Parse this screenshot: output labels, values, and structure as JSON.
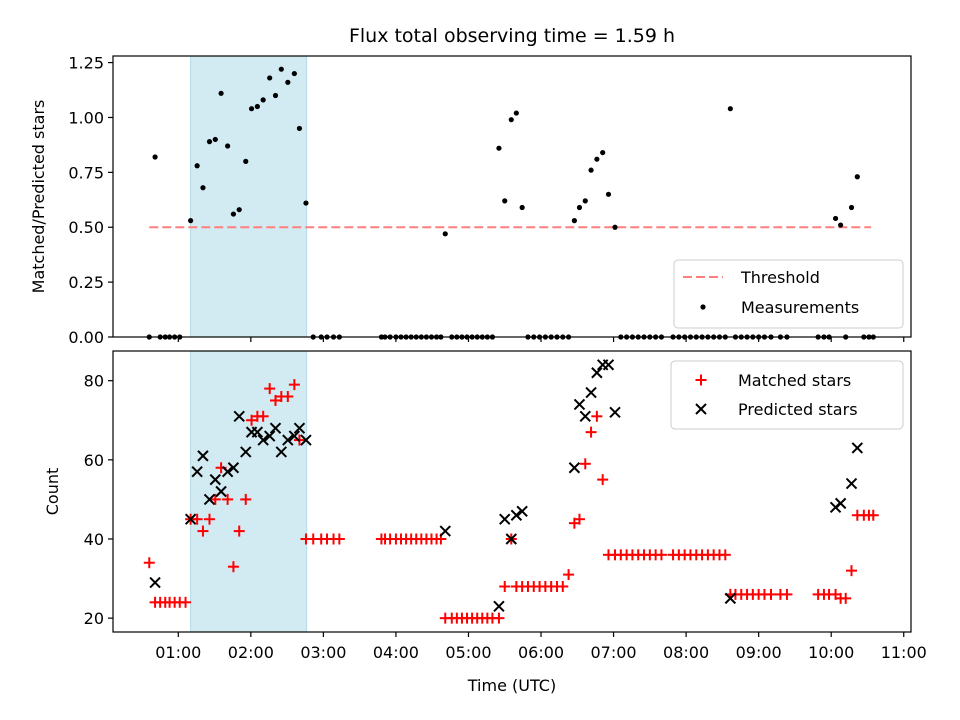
{
  "chart_data": {
    "title": "Flux total observing time = 1.59 h",
    "xlabel": "Time (UTC)",
    "x_ticks": [
      "01:00",
      "02:00",
      "03:00",
      "04:00",
      "05:00",
      "06:00",
      "07:00",
      "08:00",
      "09:00",
      "10:00",
      "11:00"
    ],
    "x_range_hours": [
      0.1,
      11.1
    ],
    "highlight_span_hours": [
      1.17,
      2.77
    ],
    "colors": {
      "threshold": "#ff7f7f",
      "measurement": "#000000",
      "matched": "#ff0000",
      "predicted": "#000000",
      "span": "#add8e6"
    },
    "panels": [
      {
        "type": "scatter",
        "ylabel": "Matched/Predicted stars",
        "ylim": [
          0,
          1.28
        ],
        "y_ticks": [
          "0.00",
          "0.25",
          "0.50",
          "0.75",
          "1.00",
          "1.25"
        ],
        "legend_position": "bottom-right",
        "threshold": {
          "name": "Threshold",
          "value": 0.5,
          "x_range": [
            0.6,
            10.55
          ]
        },
        "measurements": {
          "name": "Measurements",
          "x": [
            0.6,
            0.68,
            0.75,
            0.82,
            0.88,
            0.95,
            1.02,
            1.17,
            1.26,
            1.34,
            1.43,
            1.51,
            1.59,
            1.68,
            1.76,
            1.84,
            1.93,
            2.01,
            2.09,
            2.17,
            2.26,
            2.34,
            2.42,
            2.51,
            2.6,
            2.67,
            2.76,
            2.86,
            2.97,
            3.05,
            3.14,
            3.22,
            3.8,
            3.85,
            3.92,
            4.0,
            4.07,
            4.14,
            4.21,
            4.28,
            4.35,
            4.42,
            4.49,
            4.56,
            4.62,
            4.68,
            4.77,
            4.84,
            4.91,
            4.98,
            5.05,
            5.12,
            5.19,
            5.26,
            5.33,
            5.42,
            5.5,
            5.59,
            5.66,
            5.74,
            5.82,
            5.9,
            5.98,
            6.06,
            6.14,
            6.22,
            6.3,
            6.38,
            6.46,
            6.53,
            6.61,
            6.69,
            6.77,
            6.85,
            6.93,
            7.02,
            7.1,
            7.18,
            7.26,
            7.34,
            7.42,
            7.5,
            7.58,
            7.66,
            7.82,
            7.9,
            7.98,
            8.06,
            8.14,
            8.22,
            8.3,
            8.38,
            8.46,
            8.54,
            8.61,
            8.68,
            8.76,
            8.84,
            8.92,
            9.0,
            9.08,
            9.17,
            9.3,
            9.39,
            9.82,
            9.9,
            9.97,
            10.06,
            10.13,
            10.2,
            10.28,
            10.36,
            10.45,
            10.52,
            10.58
          ],
          "y": [
            0.0,
            0.82,
            0.0,
            0.0,
            0.0,
            0.0,
            0.0,
            0.53,
            0.78,
            0.68,
            0.89,
            0.9,
            1.11,
            0.87,
            0.56,
            0.58,
            0.8,
            1.04,
            1.05,
            1.08,
            1.18,
            1.1,
            1.22,
            1.16,
            1.2,
            0.95,
            0.61,
            0.0,
            0.0,
            0.0,
            0.0,
            0.0,
            0.0,
            0.0,
            0.0,
            0.0,
            0.0,
            0.0,
            0.0,
            0.0,
            0.0,
            0.0,
            0.0,
            0.0,
            0.0,
            0.47,
            0.0,
            0.0,
            0.0,
            0.0,
            0.0,
            0.0,
            0.0,
            0.0,
            0.0,
            0.86,
            0.62,
            0.99,
            1.02,
            0.59,
            0.0,
            0.0,
            0.0,
            0.0,
            0.0,
            0.0,
            0.0,
            0.0,
            0.53,
            0.59,
            0.62,
            0.76,
            0.81,
            0.84,
            0.65,
            0.5,
            0.0,
            0.0,
            0.0,
            0.0,
            0.0,
            0.0,
            0.0,
            0.0,
            0.0,
            0.0,
            0.0,
            0.0,
            0.0,
            0.0,
            0.0,
            0.0,
            0.0,
            0.0,
            1.04,
            0.0,
            0.0,
            0.0,
            0.0,
            0.0,
            0.0,
            0.0,
            0.0,
            0.0,
            0.0,
            0.0,
            0.0,
            0.54,
            0.51,
            0.0,
            0.59,
            0.73,
            0.0,
            0.0,
            0.0
          ]
        },
        "legend": [
          "Threshold",
          "Measurements"
        ]
      },
      {
        "type": "scatter",
        "ylabel": "Count",
        "ylim": [
          16.5,
          87.5
        ],
        "y_ticks": [
          "20",
          "40",
          "60",
          "80"
        ],
        "legend_position": "top-right",
        "matched": {
          "name": "Matched stars",
          "x": [
            0.6,
            0.68,
            0.75,
            0.82,
            0.88,
            0.95,
            1.02,
            1.1,
            1.17,
            1.26,
            1.34,
            1.43,
            1.51,
            1.59,
            1.68,
            1.76,
            1.84,
            1.93,
            2.01,
            2.09,
            2.17,
            2.26,
            2.34,
            2.42,
            2.51,
            2.6,
            2.67,
            2.76,
            2.86,
            2.97,
            3.05,
            3.14,
            3.22,
            3.8,
            3.85,
            3.92,
            4.0,
            4.07,
            4.14,
            4.21,
            4.28,
            4.35,
            4.42,
            4.49,
            4.56,
            4.62,
            4.68,
            4.77,
            4.84,
            4.91,
            4.98,
            5.05,
            5.12,
            5.19,
            5.26,
            5.33,
            5.42,
            5.5,
            5.59,
            5.66,
            5.74,
            5.82,
            5.9,
            5.98,
            6.06,
            6.14,
            6.22,
            6.3,
            6.38,
            6.46,
            6.53,
            6.61,
            6.69,
            6.77,
            6.85,
            6.93,
            7.02,
            7.1,
            7.18,
            7.26,
            7.34,
            7.42,
            7.5,
            7.58,
            7.66,
            7.82,
            7.9,
            7.98,
            8.06,
            8.14,
            8.22,
            8.3,
            8.38,
            8.46,
            8.54,
            8.61,
            8.68,
            8.76,
            8.84,
            8.92,
            9.0,
            9.08,
            9.17,
            9.3,
            9.39,
            9.82,
            9.9,
            9.97,
            10.06,
            10.13,
            10.2,
            10.28,
            10.36,
            10.45,
            10.52,
            10.58
          ],
          "y": [
            34,
            24,
            24,
            24,
            24,
            24,
            24,
            24,
            45,
            45,
            42,
            45,
            50,
            58,
            50,
            33,
            42,
            50,
            70,
            71,
            71,
            78,
            75,
            76,
            76,
            79,
            65,
            40,
            40,
            40,
            40,
            40,
            40,
            40,
            40,
            40,
            40,
            40,
            40,
            40,
            40,
            40,
            40,
            40,
            40,
            40,
            20,
            20,
            20,
            20,
            20,
            20,
            20,
            20,
            20,
            20,
            20,
            28,
            40,
            28,
            28,
            28,
            28,
            28,
            28,
            28,
            28,
            28,
            31,
            44,
            45,
            59,
            67,
            71,
            55,
            36,
            36,
            36,
            36,
            36,
            36,
            36,
            36,
            36,
            36,
            36,
            36,
            36,
            36,
            36,
            36,
            36,
            36,
            36,
            36,
            26,
            26,
            26,
            26,
            26,
            26,
            26,
            26,
            26,
            26,
            26,
            26,
            26,
            26,
            25,
            25,
            32,
            46,
            46,
            46,
            46
          ]
        },
        "predicted": {
          "name": "Predicted stars",
          "x": [
            0.68,
            1.17,
            1.26,
            1.34,
            1.43,
            1.51,
            1.59,
            1.68,
            1.76,
            1.84,
            1.93,
            2.01,
            2.09,
            2.17,
            2.26,
            2.34,
            2.42,
            2.51,
            2.6,
            2.67,
            2.76,
            4.68,
            5.42,
            5.5,
            5.59,
            5.66,
            5.74,
            6.46,
            6.53,
            6.61,
            6.69,
            6.77,
            6.85,
            6.93,
            7.02,
            8.61,
            10.06,
            10.13,
            10.28,
            10.36
          ],
          "y": [
            29,
            45,
            57,
            61,
            50,
            55,
            52,
            57,
            58,
            71,
            62,
            67,
            67,
            65,
            66,
            68,
            62,
            65,
            66,
            68,
            65,
            42,
            23,
            45,
            40,
            46,
            47,
            58,
            74,
            71,
            77,
            82,
            84,
            84,
            72,
            25,
            48,
            49,
            54,
            63
          ]
        },
        "legend": [
          "Matched stars",
          "Predicted stars"
        ]
      }
    ]
  }
}
